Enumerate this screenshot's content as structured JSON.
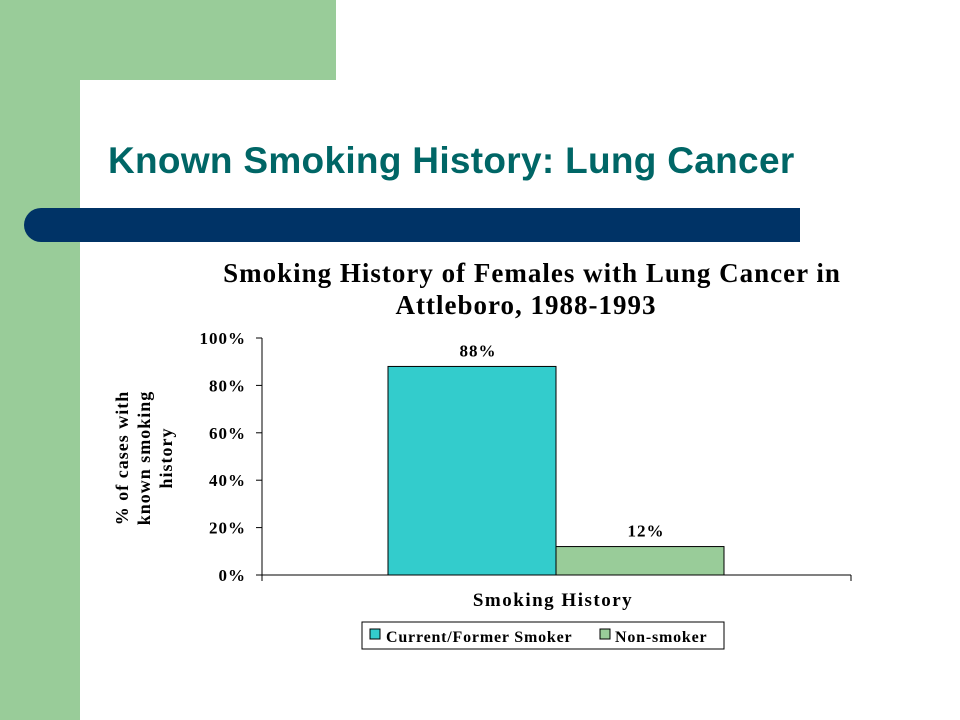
{
  "slide": {
    "title": "Known Smoking History: Lung Cancer"
  },
  "colors": {
    "side_band": "#99cc99",
    "title_bar": "#003366",
    "title_text": "#006666",
    "series_current": "#33cccc",
    "series_non": "#99cc99"
  },
  "chart_data": {
    "type": "bar",
    "title_lines": [
      "Smoking History of Females with Lung Cancer in",
      "Attleboro, 1988-1993"
    ],
    "xlabel": "Smoking History",
    "ylabel_lines": [
      "% of cases with",
      "known smoking",
      "history"
    ],
    "ylim": [
      0,
      100
    ],
    "yticks": [
      "0%",
      "20%",
      "40%",
      "60%",
      "80%",
      "100%"
    ],
    "series": [
      {
        "name": "Current/Former Smoker",
        "value": 88,
        "label": "88%",
        "color": "#33cccc"
      },
      {
        "name": "Non-smoker",
        "value": 12,
        "label": "12%",
        "color": "#99cc99"
      }
    ],
    "legend_position": "bottom",
    "grid": false
  }
}
